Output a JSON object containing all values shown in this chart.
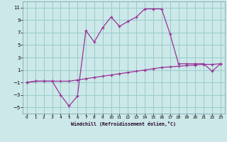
{
  "xlabel": "Windchill (Refroidissement éolien,°C)",
  "background_color": "#cce8e8",
  "grid_color": "#99cccc",
  "line_color": "#993399",
  "x_data": [
    0,
    1,
    2,
    3,
    4,
    5,
    6,
    7,
    8,
    9,
    10,
    11,
    12,
    13,
    14,
    15,
    16,
    17,
    18,
    19,
    20,
    21,
    22,
    23
  ],
  "y_line1": [
    -1.0,
    -0.8,
    -0.8,
    -0.8,
    -0.8,
    -0.8,
    -0.6,
    -0.4,
    -0.2,
    0.0,
    0.2,
    0.4,
    0.6,
    0.8,
    1.0,
    1.2,
    1.4,
    1.5,
    1.6,
    1.7,
    1.8,
    1.9,
    1.9,
    2.0
  ],
  "y_line2": [
    -1.0,
    -0.8,
    -0.8,
    -0.8,
    -3.0,
    -4.8,
    -3.2,
    7.3,
    5.5,
    7.8,
    9.5,
    8.0,
    8.8,
    9.5,
    10.8,
    10.8,
    10.8,
    6.8,
    2.0,
    2.0,
    2.0,
    2.0,
    0.8,
    2.0
  ],
  "ylim": [
    -6,
    12
  ],
  "xlim": [
    -0.5,
    23.5
  ],
  "yticks": [
    -5,
    -3,
    -1,
    1,
    3,
    5,
    7,
    9,
    11
  ],
  "xticks": [
    0,
    1,
    2,
    3,
    4,
    5,
    6,
    7,
    8,
    9,
    10,
    11,
    12,
    13,
    14,
    15,
    16,
    17,
    18,
    19,
    20,
    21,
    22,
    23
  ]
}
